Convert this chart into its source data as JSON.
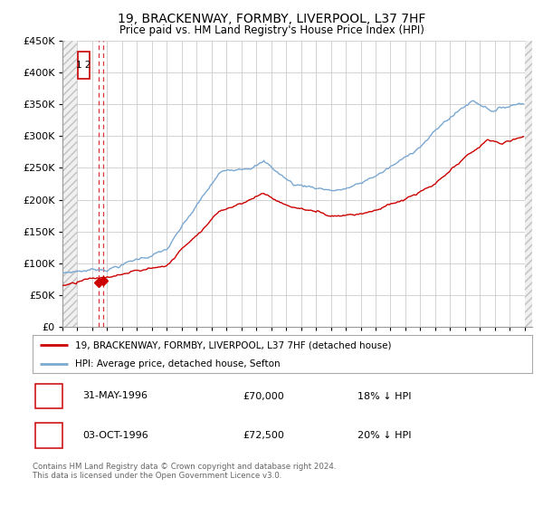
{
  "title": "19, BRACKENWAY, FORMBY, LIVERPOOL, L37 7HF",
  "subtitle": "Price paid vs. HM Land Registry's House Price Index (HPI)",
  "legend_label_red": "19, BRACKENWAY, FORMBY, LIVERPOOL, L37 7HF (detached house)",
  "legend_label_blue": "HPI: Average price, detached house, Sefton",
  "transaction_1_num": "1",
  "transaction_1_date": "31-MAY-1996",
  "transaction_1_price": "£70,000",
  "transaction_1_hpi": "18% ↓ HPI",
  "transaction_2_num": "2",
  "transaction_2_date": "03-OCT-1996",
  "transaction_2_price": "£72,500",
  "transaction_2_hpi": "20% ↓ HPI",
  "footer": "Contains HM Land Registry data © Crown copyright and database right 2024.\nThis data is licensed under the Open Government Licence v3.0.",
  "ylim": [
    0,
    450000
  ],
  "yticks": [
    0,
    50000,
    100000,
    150000,
    200000,
    250000,
    300000,
    350000,
    400000,
    450000
  ],
  "grid_color": "#cccccc",
  "dashed_line_color": "#dd3333",
  "sale_marker_color": "#cc0000",
  "red_line_color": "#cc0000",
  "blue_line_color": "#7aa8d2",
  "annotation_box_color": "#cc0000",
  "sale1_year": 1996.417,
  "sale1_price": 70000,
  "sale2_year": 1996.75,
  "sale2_price": 72500,
  "xmin": 1994,
  "xmax": 2025.5,
  "hatch_left_end": 1995.0,
  "hatch_right_start": 2025.0
}
